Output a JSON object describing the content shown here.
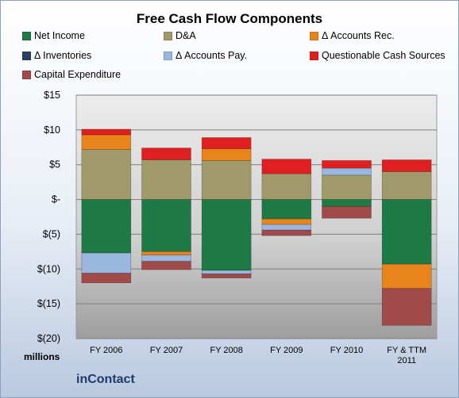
{
  "chart_data": {
    "type": "bar",
    "stacked": true,
    "title": "Free Cash Flow Components",
    "categories": [
      "FY 2006",
      "FY 2007",
      "FY 2008",
      "FY 2009",
      "FY 2010",
      "FY & TTM 2011"
    ],
    "series": [
      {
        "name": "Net Income",
        "color": "#1e7a44",
        "values": [
          -7.7,
          -7.5,
          -10.2,
          -2.8,
          -1.0,
          -9.3
        ]
      },
      {
        "name": "D&A",
        "color": "#a09a6a",
        "values": [
          7.2,
          5.7,
          5.6,
          3.7,
          3.5,
          4.0
        ]
      },
      {
        "name": "Δ Accounts Rec.",
        "color": "#e9841c",
        "values": [
          2.1,
          -0.5,
          1.7,
          -0.8,
          0.0,
          -3.5
        ]
      },
      {
        "name": "Δ Inventories",
        "color": "#2a3f5f",
        "values": [
          0.0,
          0.0,
          0.0,
          0.0,
          0.0,
          0.0
        ]
      },
      {
        "name": "Δ Accounts Pay.",
        "color": "#9ab7e0",
        "values": [
          -2.9,
          -0.9,
          -0.5,
          -0.8,
          1.0,
          0.0
        ]
      },
      {
        "name": "Questionable Cash Sources",
        "color": "#e02020",
        "values": [
          0.8,
          1.7,
          1.6,
          2.1,
          1.1,
          1.7
        ]
      },
      {
        "name": "Capital Expenditure",
        "color": "#a04a4a",
        "values": [
          -1.4,
          -1.2,
          -0.6,
          -0.8,
          -1.7,
          -5.3
        ]
      }
    ],
    "ylim": [
      -20,
      15
    ],
    "y_ticks": [
      15,
      10,
      5,
      0,
      -5,
      -10,
      -15,
      -20
    ],
    "y_tick_labels": [
      "$15",
      "$10",
      "$5",
      "$-",
      "$(5)",
      "$(10)",
      "$(15)",
      "$(20)"
    ],
    "grid": true,
    "legend_position": "top"
  },
  "units_label": "millions",
  "footer_brand": "inContact"
}
